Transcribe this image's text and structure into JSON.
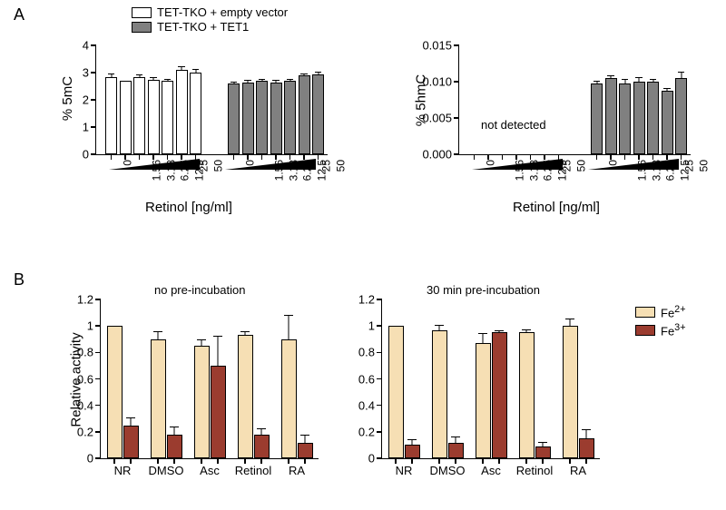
{
  "panelA": {
    "label": "A"
  },
  "panelB": {
    "label": "B"
  },
  "colors": {
    "white_bar": "#ffffff",
    "gray_bar": "#808080",
    "beige_bar": "#f6dfb4",
    "brick_bar": "#9b3c2f",
    "bar_border": "#000000",
    "wedge": "#000000"
  },
  "chartA1": {
    "type": "bar",
    "ylabel": "% 5mC",
    "xlabel": "Retinol [ng/ml]",
    "ylim": [
      0,
      4
    ],
    "yticks": [
      0,
      1,
      2,
      3,
      4
    ],
    "groups": [
      {
        "label": "TET-TKO + empty vector",
        "color": "white_bar"
      },
      {
        "label": "TET-TKO + TET1",
        "color": "gray_bar"
      }
    ],
    "categories": [
      "0",
      "1.56",
      "3.13",
      "6.25",
      "12.5",
      "25",
      "50"
    ],
    "values_g1": [
      2.85,
      2.7,
      2.85,
      2.75,
      2.7,
      3.1,
      3.0
    ],
    "errors_g1": [
      0.08,
      0.0,
      0.05,
      0.05,
      0.05,
      0.1,
      0.1
    ],
    "values_g2": [
      2.6,
      2.65,
      2.7,
      2.65,
      2.7,
      2.9,
      2.95
    ],
    "errors_g2": [
      0.05,
      0.05,
      0.05,
      0.05,
      0.05,
      0.05,
      0.05
    ]
  },
  "chartA2": {
    "type": "bar",
    "ylabel": "% 5hmC",
    "xlabel": "Retinol [ng/ml]",
    "ylim": [
      0,
      0.015
    ],
    "yticks": [
      0.0,
      0.005,
      0.01,
      0.015
    ],
    "categories": [
      "0",
      "1.56",
      "3.13",
      "6.25",
      "12.5",
      "25",
      "50"
    ],
    "not_detected": "not detected",
    "values_g2": [
      0.0098,
      0.0105,
      0.0098,
      0.01,
      0.01,
      0.0088,
      0.0105
    ],
    "errors_g2": [
      0.0002,
      0.0002,
      0.0005,
      0.0005,
      0.0003,
      0.0002,
      0.0008
    ]
  },
  "chartB1": {
    "type": "bar",
    "subtitle": "no pre-incubation",
    "ylabel": "Relative activity",
    "ylim": [
      0,
      1.2
    ],
    "yticks": [
      0,
      0.2,
      0.4,
      0.6,
      0.8,
      1,
      1.2
    ],
    "categories": [
      "NR",
      "DMSO",
      "Asc",
      "Retinol",
      "RA"
    ],
    "series": [
      {
        "label": "Fe2+",
        "color": "beige_bar"
      },
      {
        "label": "Fe3+",
        "color": "brick_bar"
      }
    ],
    "values_fe2": [
      1.0,
      0.9,
      0.85,
      0.93,
      0.9
    ],
    "errors_fe2": [
      0.0,
      0.05,
      0.04,
      0.02,
      0.18
    ],
    "values_fe3": [
      0.25,
      0.18,
      0.7,
      0.18,
      0.12
    ],
    "errors_fe3": [
      0.05,
      0.05,
      0.22,
      0.04,
      0.05
    ]
  },
  "chartB2": {
    "type": "bar",
    "subtitle": "30 min pre-incubation",
    "ylim": [
      0,
      1.2
    ],
    "yticks": [
      0,
      0.2,
      0.4,
      0.6,
      0.8,
      1,
      1.2
    ],
    "categories": [
      "NR",
      "DMSO",
      "Asc",
      "Retinol",
      "RA"
    ],
    "values_fe2": [
      1.0,
      0.97,
      0.87,
      0.95,
      1.0
    ],
    "errors_fe2": [
      0.0,
      0.03,
      0.07,
      0.02,
      0.05
    ],
    "values_fe3": [
      0.1,
      0.12,
      0.95,
      0.09,
      0.15
    ],
    "errors_fe3": [
      0.04,
      0.04,
      0.01,
      0.03,
      0.06
    ]
  },
  "legendB": {
    "fe2": "Fe",
    "fe2_sup": "2+",
    "fe3": "Fe",
    "fe3_sup": "3+"
  }
}
